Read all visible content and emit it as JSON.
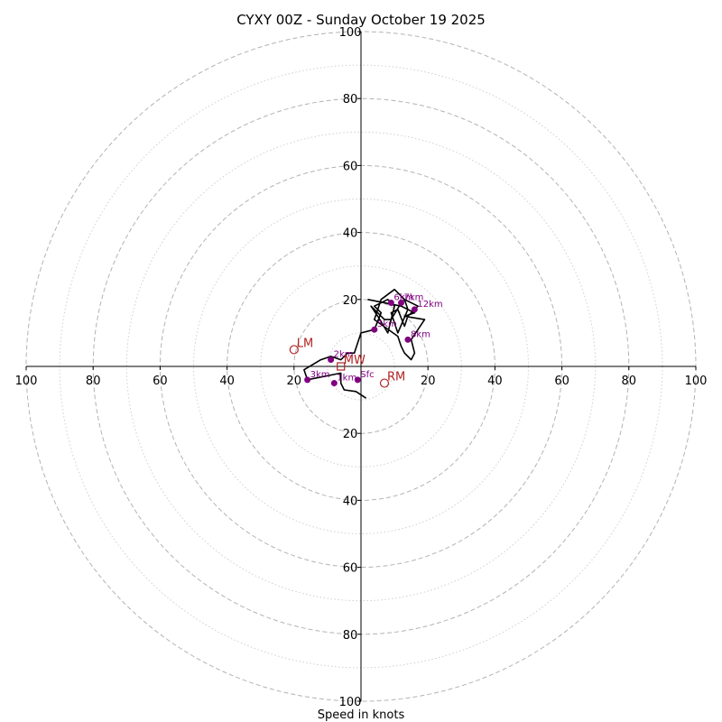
{
  "chart_data": {
    "type": "hodograph",
    "title": "CYXY 00Z - Sunday October 19 2025",
    "xlabel": "Speed in knots",
    "units": "knots",
    "range": [
      -100,
      100
    ],
    "ring_labels": [
      "20",
      "40",
      "60",
      "80",
      "100"
    ],
    "major_rings": [
      20,
      40,
      60,
      80,
      100
    ],
    "minor_rings": [
      10,
      30,
      50,
      70,
      90
    ],
    "colors": {
      "trace": "#000000",
      "height_points": "#800080",
      "motion": "#b22222",
      "grid": "#b3b3b3",
      "axis": "#000000"
    },
    "trace": [
      {
        "u": 1.5,
        "v": -9.5
      },
      {
        "u": -1.5,
        "v": -7.5
      },
      {
        "u": -5,
        "v": -7
      },
      {
        "u": -6,
        "v": -5
      },
      {
        "u": -6,
        "v": -2
      },
      {
        "u": -16,
        "v": -4
      },
      {
        "u": -17,
        "v": -1
      },
      {
        "u": -12,
        "v": 2
      },
      {
        "u": -9,
        "v": 3
      },
      {
        "u": -6,
        "v": 2
      },
      {
        "u": -4,
        "v": 4
      },
      {
        "u": -2,
        "v": 4
      },
      {
        "u": 0,
        "v": 10
      },
      {
        "u": 4,
        "v": 11
      },
      {
        "u": 6,
        "v": 16
      },
      {
        "u": 4,
        "v": 18
      },
      {
        "u": 8,
        "v": 20
      },
      {
        "u": 10,
        "v": 18
      },
      {
        "u": 8,
        "v": 10
      },
      {
        "u": 5,
        "v": 15
      },
      {
        "u": 3,
        "v": 18
      },
      {
        "u": 7,
        "v": 14
      },
      {
        "u": 9,
        "v": 14
      },
      {
        "u": 12,
        "v": 19
      },
      {
        "u": 13,
        "v": 20
      },
      {
        "u": 17,
        "v": 18
      },
      {
        "u": 14,
        "v": 15
      },
      {
        "u": 13,
        "v": 12
      },
      {
        "u": 11,
        "v": 17
      },
      {
        "u": 9,
        "v": 16
      },
      {
        "u": 10,
        "v": 13
      },
      {
        "u": 11,
        "v": 10
      },
      {
        "u": 14,
        "v": 17
      },
      {
        "u": 13,
        "v": 20
      },
      {
        "u": 10,
        "v": 23
      },
      {
        "u": 6,
        "v": 20
      },
      {
        "u": 4,
        "v": 14
      },
      {
        "u": 11,
        "v": 9
      },
      {
        "u": 12,
        "v": 6
      },
      {
        "u": 13,
        "v": 4
      },
      {
        "u": 15,
        "v": 2
      },
      {
        "u": 16,
        "v": 4
      },
      {
        "u": 15,
        "v": 8
      },
      {
        "u": 19,
        "v": 14
      },
      {
        "u": 13,
        "v": 15
      },
      {
        "u": 16,
        "v": 16
      },
      {
        "u": 12,
        "v": 18
      },
      {
        "u": 2,
        "v": 20
      }
    ],
    "height_points": [
      {
        "label": "Sfc",
        "u": -1,
        "v": -4
      },
      {
        "label": "1km",
        "u": -8,
        "v": -5
      },
      {
        "label": "2km",
        "u": -9,
        "v": 2
      },
      {
        "label": "3km",
        "u": -16,
        "v": -4
      },
      {
        "label": "5km",
        "u": 4,
        "v": 11
      },
      {
        "label": "6km",
        "u": 9,
        "v": 19
      },
      {
        "label": "7km",
        "u": 12,
        "v": 19
      },
      {
        "label": "8km",
        "u": 14,
        "v": 8
      },
      {
        "label": "12km",
        "u": 16,
        "v": 17
      }
    ],
    "storm_motion": [
      {
        "label": "LM",
        "u": -20,
        "v": 5
      },
      {
        "label": "MW",
        "u": -6,
        "v": 0
      },
      {
        "label": "RM",
        "u": 7,
        "v": -5
      }
    ]
  }
}
